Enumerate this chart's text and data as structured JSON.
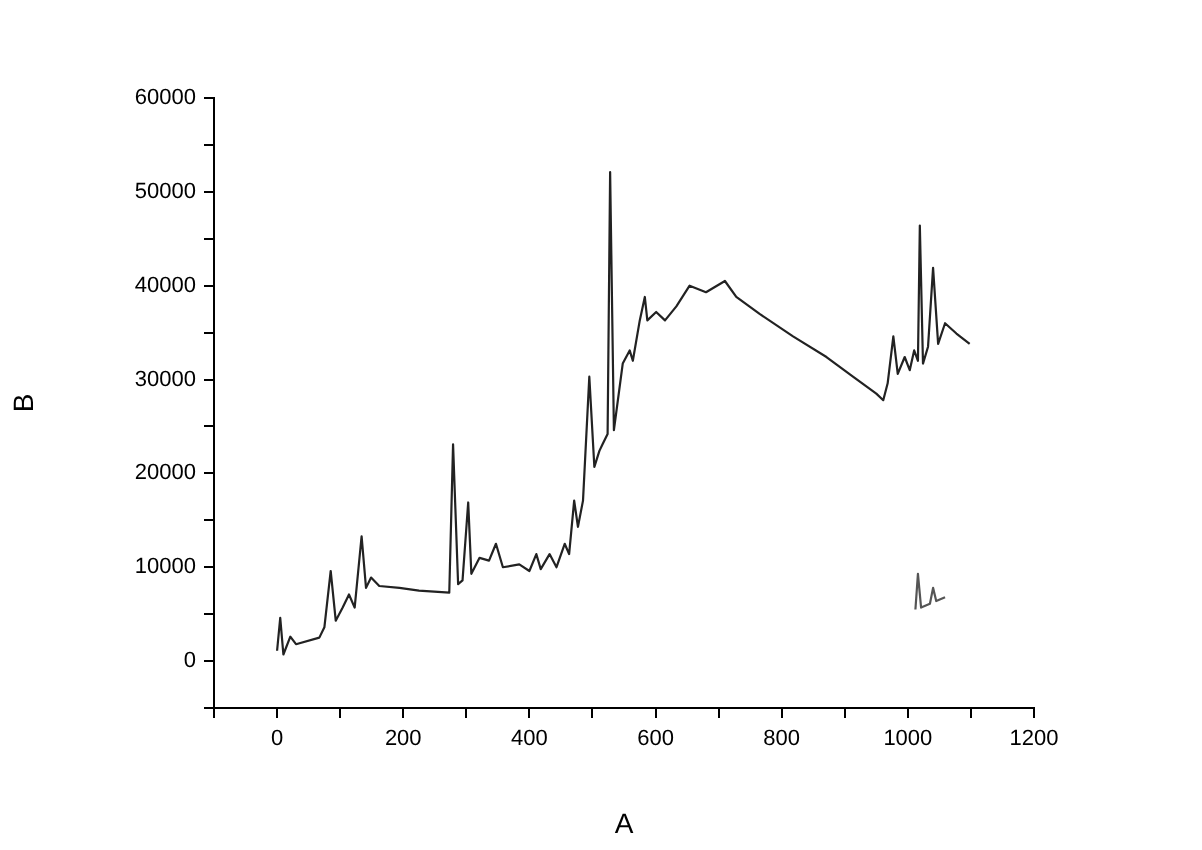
{
  "chart_data": {
    "type": "line",
    "xlabel": "A",
    "ylabel": "B",
    "xlim": [
      -100,
      1200
    ],
    "ylim": [
      -5000,
      60000
    ],
    "xticks": [
      {
        "value": -100,
        "label": null
      },
      0,
      {
        "value": 100,
        "label": null
      },
      200,
      {
        "value": 300,
        "label": null
      },
      400,
      {
        "value": 500,
        "label": null
      },
      600,
      {
        "value": 700,
        "label": null
      },
      800,
      {
        "value": 900,
        "label": null
      },
      1000,
      {
        "value": 1100,
        "label": null
      },
      1200
    ],
    "yticks": [
      {
        "value": -5000,
        "label": null
      },
      0,
      {
        "value": 5000,
        "label": null
      },
      10000,
      {
        "value": 15000,
        "label": null
      },
      20000,
      {
        "value": 25000,
        "label": null
      },
      30000,
      {
        "value": 35000,
        "label": null
      },
      40000,
      {
        "value": 45000,
        "label": null
      },
      50000,
      {
        "value": 55000,
        "label": null
      },
      60000
    ],
    "grid": false,
    "legend": false,
    "marker": "none",
    "line_style": "solid",
    "series": [
      {
        "color": "#222222",
        "x": [
          0,
          5,
          10,
          21,
          30,
          67,
          75,
          85,
          93,
          104,
          114,
          123,
          134,
          141,
          149,
          162,
          194,
          225,
          273,
          279,
          287,
          294,
          303,
          308,
          321,
          336,
          347,
          358,
          384,
          400,
          411,
          418,
          432,
          443,
          456,
          463,
          471,
          477,
          485,
          495,
          503,
          511,
          516,
          524,
          528,
          534,
          548,
          559,
          564,
          575,
          583,
          587,
          601,
          615,
          633,
          654,
          680,
          710,
          728,
          765,
          818,
          871,
          913,
          950,
          961,
          968,
          977,
          984,
          995,
          1003,
          1010,
          1016,
          1019,
          1024,
          1032,
          1040,
          1048,
          1059,
          1077,
          1098
        ],
        "values": [
          1100,
          4600,
          700,
          2600,
          1800,
          2500,
          3600,
          9600,
          4300,
          5700,
          7100,
          5700,
          13300,
          7800,
          8900,
          8000,
          7800,
          7500,
          7300,
          23100,
          8200,
          8600,
          16900,
          9300,
          11000,
          10700,
          12500,
          10000,
          10300,
          9600,
          11400,
          9800,
          11400,
          10000,
          12500,
          11400,
          17100,
          14300,
          17100,
          30300,
          20700,
          22400,
          23100,
          24200,
          52100,
          24600,
          31700,
          33100,
          32000,
          36300,
          38800,
          36300,
          37200,
          36300,
          37800,
          40000,
          39300,
          40500,
          38800,
          37000,
          34600,
          32400,
          30300,
          28500,
          27800,
          29600,
          34600,
          30600,
          32400,
          31000,
          33100,
          32000,
          46400,
          31700,
          33500,
          41900,
          33800,
          36000,
          34900,
          33800
        ]
      },
      {
        "color": "#555555",
        "x": [
          1012,
          1016,
          1021,
          1035,
          1040,
          1045,
          1059
        ],
        "values": [
          5500,
          9300,
          5700,
          6100,
          7800,
          6400,
          6800
        ]
      }
    ]
  }
}
